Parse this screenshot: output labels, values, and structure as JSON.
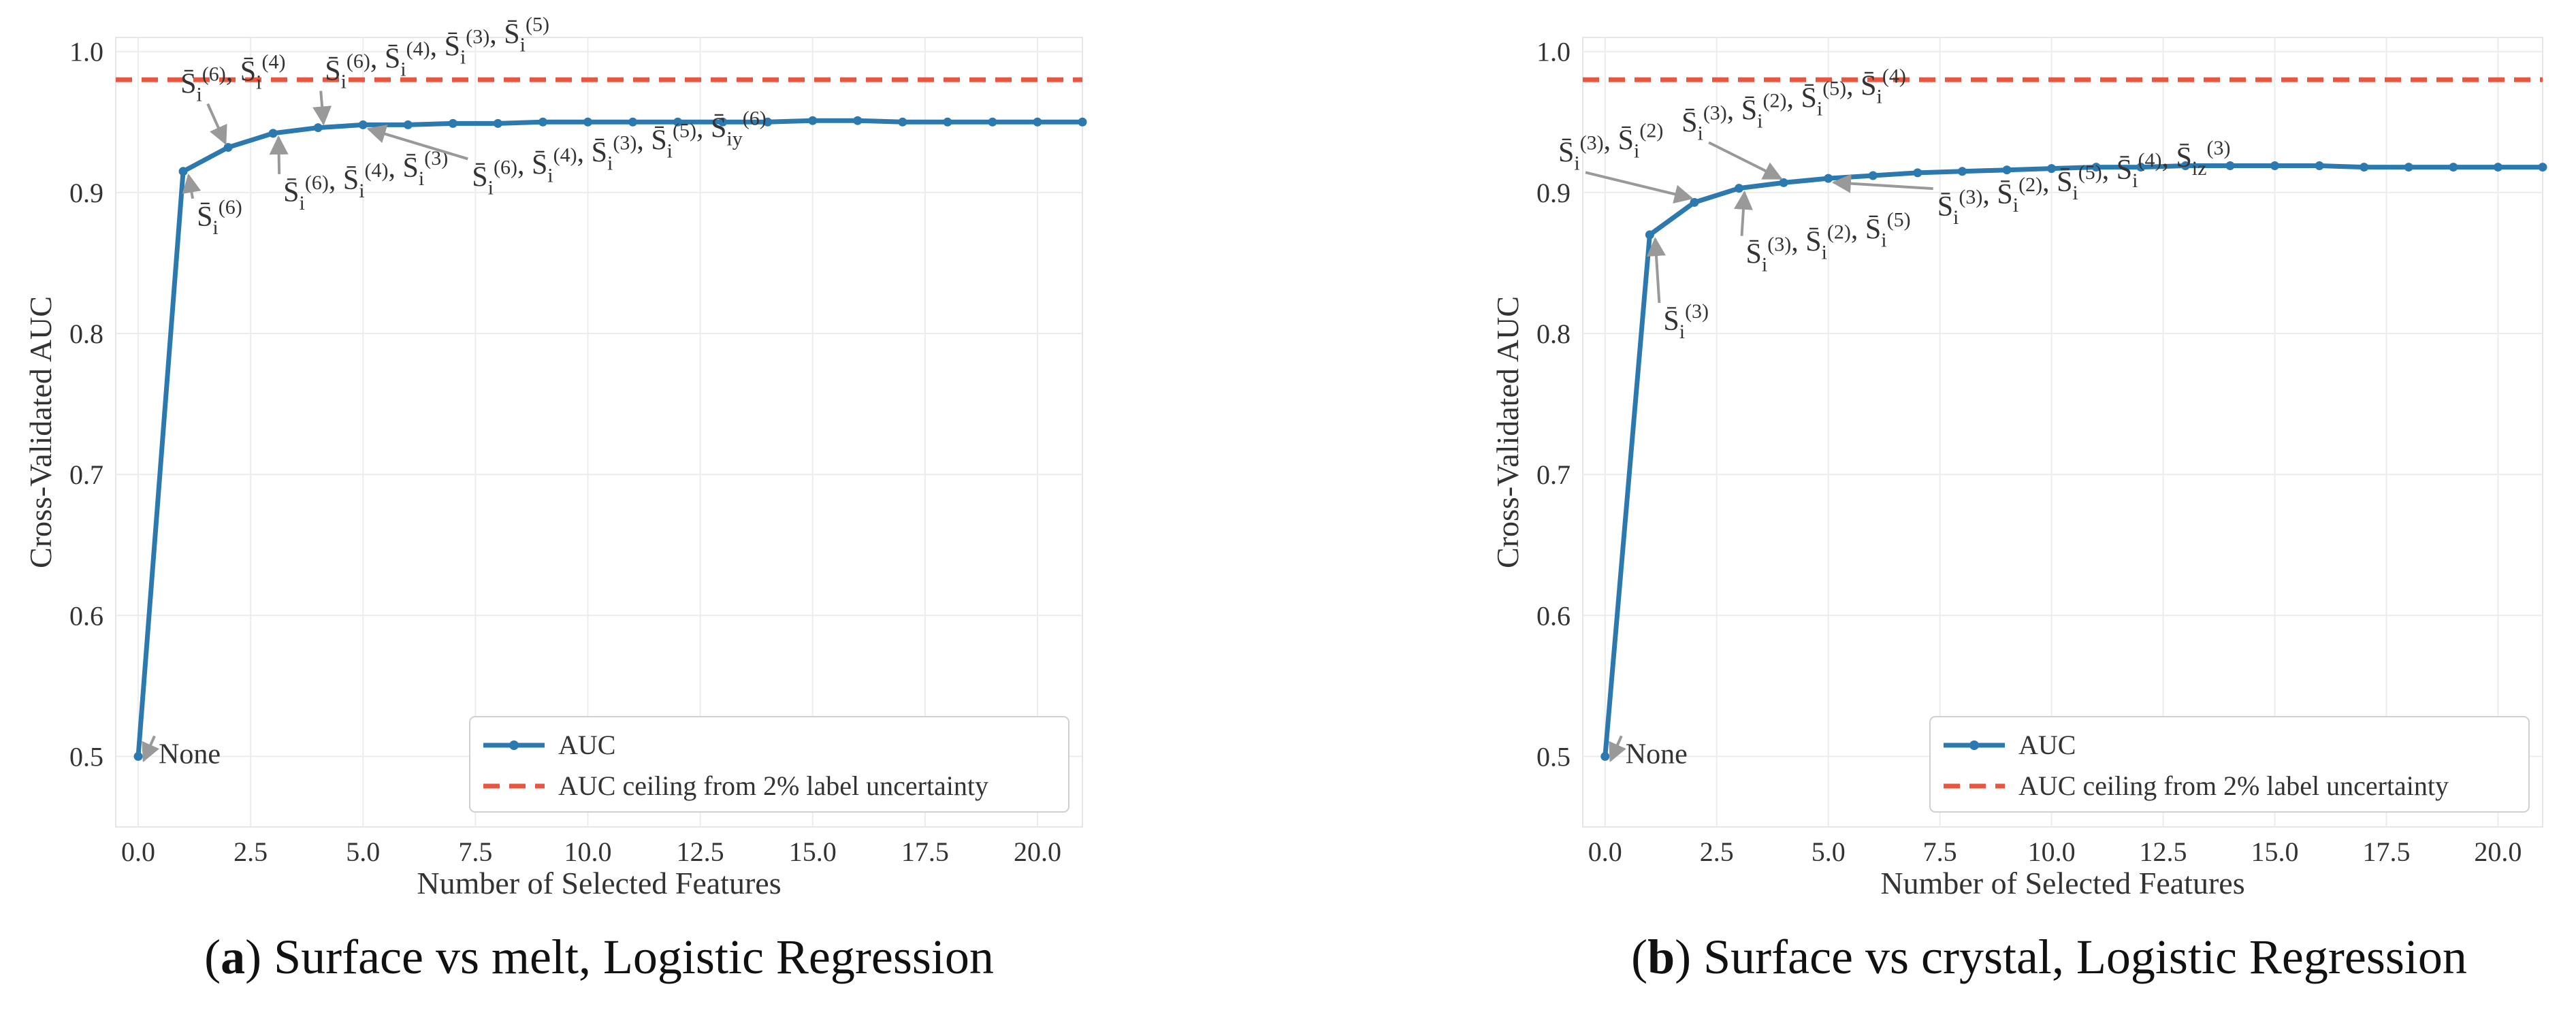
{
  "figure": {
    "colors": {
      "auc_line": "#2c79b0",
      "ceiling": "#e8563f",
      "grid": "#ececec",
      "annotation_arrow": "#999999",
      "text": "#333333"
    }
  },
  "chart_data": [
    {
      "type": "line",
      "panel": "a",
      "caption_letter": "a",
      "caption_text": "Surface vs melt, Logistic Regression",
      "xlabel": "Number of Selected Features",
      "ylabel": "Cross-Validated AUC",
      "xlim": [
        -0.5,
        21
      ],
      "ylim": [
        0.45,
        1.01
      ],
      "xticks": [
        0,
        2.5,
        5,
        7.5,
        10,
        12.5,
        15,
        17.5,
        20
      ],
      "xtick_labels": [
        "0.0",
        "2.5",
        "5.0",
        "7.5",
        "10.0",
        "12.5",
        "15.0",
        "17.5",
        "20.0"
      ],
      "yticks": [
        0.5,
        0.6,
        0.7,
        0.8,
        0.9,
        1.0
      ],
      "ytick_labels": [
        "0.5",
        "0.6",
        "0.7",
        "0.8",
        "0.9",
        "1.0"
      ],
      "grid": true,
      "legend_position": "lower-right",
      "series": [
        {
          "name": "AUC",
          "x": [
            0,
            1,
            2,
            3,
            4,
            5,
            6,
            7,
            8,
            9,
            10,
            11,
            12,
            13,
            14,
            15,
            16,
            17,
            18,
            19,
            20,
            21
          ],
          "y": [
            0.5,
            0.915,
            0.932,
            0.942,
            0.946,
            0.948,
            0.948,
            0.949,
            0.949,
            0.95,
            0.95,
            0.95,
            0.95,
            0.95,
            0.95,
            0.951,
            0.951,
            0.95,
            0.95,
            0.95,
            0.95,
            0.95
          ]
        }
      ],
      "ceiling": {
        "name": "AUC ceiling from 2% label uncertainty",
        "y": 0.98
      },
      "annotations": [
        {
          "text": "None",
          "point": [
            0,
            0.5
          ]
        },
        {
          "text": "S̄i(6)",
          "point": [
            1,
            0.915
          ]
        },
        {
          "text": "S̄i(6), S̄i(4)",
          "point": [
            2,
            0.932
          ]
        },
        {
          "text": "S̄i(6), S̄i(4), S̄i(3)",
          "point": [
            3,
            0.942
          ]
        },
        {
          "text": "S̄i(6), S̄i(4), S̄i(3), S̄i(5)",
          "point": [
            4,
            0.946
          ]
        },
        {
          "text": "S̄i(6), S̄i(4), S̄i(3), S̄i(5), S̄iy(6)",
          "point": [
            5,
            0.948
          ]
        }
      ]
    },
    {
      "type": "line",
      "panel": "b",
      "caption_letter": "b",
      "caption_text": "Surface vs crystal, Logistic Regression",
      "xlabel": "Number of Selected Features",
      "ylabel": "Cross-Validated AUC",
      "xlim": [
        -0.5,
        21
      ],
      "ylim": [
        0.45,
        1.01
      ],
      "xticks": [
        0,
        2.5,
        5,
        7.5,
        10,
        12.5,
        15,
        17.5,
        20
      ],
      "xtick_labels": [
        "0.0",
        "2.5",
        "5.0",
        "7.5",
        "10.0",
        "12.5",
        "15.0",
        "17.5",
        "20.0"
      ],
      "yticks": [
        0.5,
        0.6,
        0.7,
        0.8,
        0.9,
        1.0
      ],
      "ytick_labels": [
        "0.5",
        "0.6",
        "0.7",
        "0.8",
        "0.9",
        "1.0"
      ],
      "grid": true,
      "legend_position": "lower-right",
      "series": [
        {
          "name": "AUC",
          "x": [
            0,
            1,
            2,
            3,
            4,
            5,
            6,
            7,
            8,
            9,
            10,
            11,
            12,
            13,
            14,
            15,
            16,
            17,
            18,
            19,
            20,
            21
          ],
          "y": [
            0.5,
            0.87,
            0.893,
            0.903,
            0.907,
            0.91,
            0.912,
            0.914,
            0.915,
            0.916,
            0.917,
            0.918,
            0.918,
            0.919,
            0.919,
            0.919,
            0.919,
            0.918,
            0.918,
            0.918,
            0.918,
            0.918
          ]
        }
      ],
      "ceiling": {
        "name": "AUC ceiling from 2% label uncertainty",
        "y": 0.98
      },
      "annotations": [
        {
          "text": "None",
          "point": [
            0,
            0.5
          ]
        },
        {
          "text": "S̄i(3)",
          "point": [
            1,
            0.87
          ]
        },
        {
          "text": "S̄i(3), S̄i(2)",
          "point": [
            2,
            0.893
          ]
        },
        {
          "text": "S̄i(3), S̄i(2), S̄i(5)",
          "point": [
            3,
            0.903
          ]
        },
        {
          "text": "S̄i(3), S̄i(2), S̄i(5), S̄i(4)",
          "point": [
            4,
            0.907
          ]
        },
        {
          "text": "S̄i(3), S̄i(2), S̄i(5), S̄i(4), S̄iz(3)",
          "point": [
            5,
            0.91
          ]
        }
      ]
    }
  ]
}
